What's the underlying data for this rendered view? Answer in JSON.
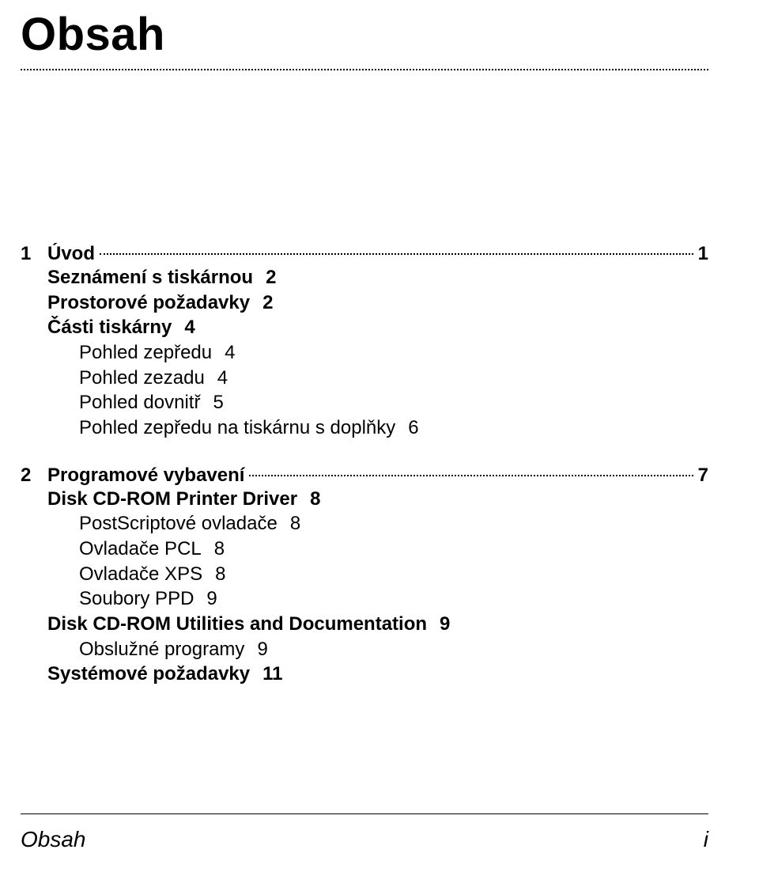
{
  "page_title": "Obsah",
  "sections": [
    {
      "number": "1",
      "label": "Úvod",
      "page": "1",
      "items": [
        {
          "level": "bold",
          "text": "Seznámení s tiskárnou",
          "page": "2"
        },
        {
          "level": "bold",
          "text": "Prostorové požadavky",
          "page": "2"
        },
        {
          "level": "bold",
          "text": "Části tiskárny",
          "page": "4"
        },
        {
          "level": "normal",
          "text": "Pohled zepředu",
          "page": "4"
        },
        {
          "level": "normal",
          "text": "Pohled zezadu",
          "page": "4"
        },
        {
          "level": "normal",
          "text": "Pohled dovnitř",
          "page": "5"
        },
        {
          "level": "normal",
          "text": "Pohled zepředu na tiskárnu s doplňky",
          "page": "6"
        }
      ]
    },
    {
      "number": "2",
      "label": "Programové vybavení",
      "page": "7",
      "items": [
        {
          "level": "bold",
          "text": "Disk CD-ROM Printer Driver",
          "page": "8"
        },
        {
          "level": "normal",
          "text": "PostScriptové ovladače",
          "page": "8"
        },
        {
          "level": "normal",
          "text": "Ovladače PCL",
          "page": "8"
        },
        {
          "level": "normal",
          "text": "Ovladače XPS",
          "page": "8"
        },
        {
          "level": "normal",
          "text": "Soubory PPD",
          "page": "9"
        },
        {
          "level": "bold",
          "text": "Disk CD-ROM Utilities and Documentation",
          "page": "9"
        },
        {
          "level": "normal",
          "text": "Obslužné programy",
          "page": "9"
        },
        {
          "level": "bold",
          "text": "Systémové požadavky",
          "page": "11"
        }
      ]
    }
  ],
  "footer": {
    "left": "Obsah",
    "right": "i"
  }
}
